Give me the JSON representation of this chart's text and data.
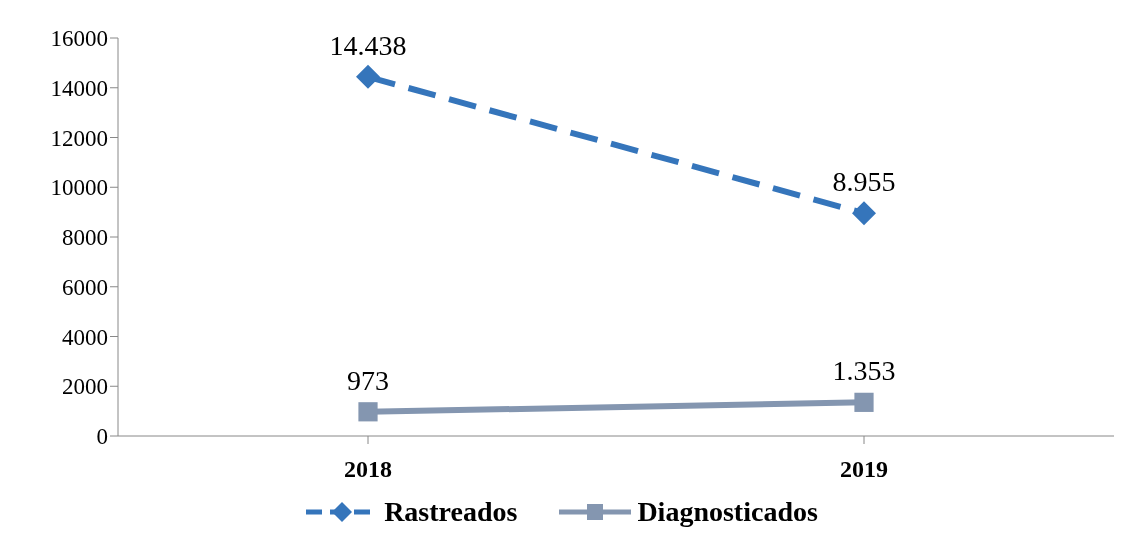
{
  "chart_data": {
    "type": "line",
    "categories": [
      "2018",
      "2019"
    ],
    "series": [
      {
        "name": "Rastreados",
        "color": "#3575bb",
        "values": [
          14438,
          8955
        ],
        "value_labels": [
          "14.438",
          "8.955"
        ],
        "marker": "diamond",
        "line_style": "dashed"
      },
      {
        "name": "Diagnosticados",
        "color": "#8496b0",
        "values": [
          973,
          1353
        ],
        "value_labels": [
          "973",
          "1.353"
        ],
        "marker": "square",
        "line_style": "solid"
      }
    ],
    "ylim": [
      0,
      16000
    ],
    "yticks": [
      0,
      2000,
      4000,
      6000,
      8000,
      10000,
      12000,
      14000,
      16000
    ],
    "grid": false,
    "legend": "bottom"
  }
}
